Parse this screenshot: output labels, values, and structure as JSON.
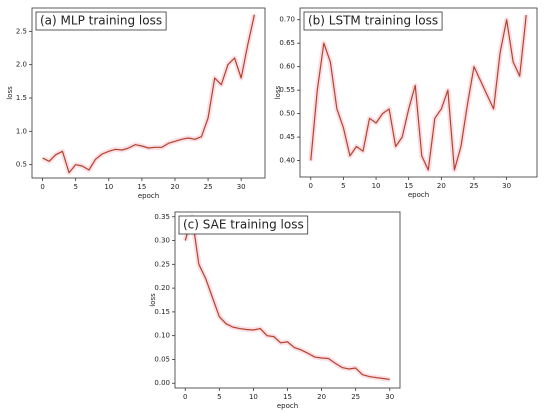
{
  "chart_data": [
    {
      "type": "line",
      "title": "(a) MLP training loss",
      "x_label": "epoch",
      "y_label": "loss",
      "color": "#b5442a",
      "x": [
        0,
        1,
        2,
        3,
        4,
        5,
        6,
        7,
        8,
        9,
        10,
        11,
        12,
        13,
        14,
        15,
        16,
        17,
        18,
        19,
        20,
        21,
        22,
        23,
        24,
        25,
        26,
        27,
        28,
        29,
        30,
        31,
        32
      ],
      "series": [
        {
          "name": "MLP",
          "color": "#b5442a",
          "values": [
            0.6,
            0.55,
            0.65,
            0.7,
            0.38,
            0.5,
            0.48,
            0.42,
            0.58,
            0.66,
            0.7,
            0.73,
            0.72,
            0.75,
            0.8,
            0.78,
            0.75,
            0.76,
            0.76,
            0.82,
            0.85,
            0.88,
            0.9,
            0.88,
            0.92,
            1.2,
            1.8,
            1.7,
            2.0,
            2.1,
            1.8,
            2.3,
            2.75
          ]
        }
      ],
      "xlim": [
        -1.6,
        33.6
      ],
      "xticks": [
        0,
        5,
        10,
        15,
        20,
        25,
        30
      ],
      "ylim": [
        0.3,
        2.85
      ],
      "yticks": [
        0.5,
        {
          "value": 1,
          "label": "1.0"
        },
        1.5,
        {
          "value": 2,
          "label": "2.0"
        },
        2.5
      ]
    },
    {
      "type": "line",
      "title": "(b) LSTM training loss",
      "x_label": "epoch",
      "y_label": "loss",
      "color": "#b5442a",
      "x": [
        0,
        1,
        2,
        3,
        4,
        5,
        6,
        7,
        8,
        9,
        10,
        11,
        12,
        13,
        14,
        15,
        16,
        17,
        18,
        19,
        20,
        21,
        22,
        23,
        24,
        25,
        26,
        27,
        28,
        29,
        30,
        31,
        32,
        33
      ],
      "series": [
        {
          "name": "LSTM",
          "color": "#b5442a",
          "values": [
            0.4,
            0.55,
            0.65,
            0.61,
            0.51,
            0.47,
            0.41,
            0.43,
            0.42,
            0.49,
            0.48,
            0.5,
            0.51,
            0.43,
            0.45,
            0.51,
            0.56,
            0.41,
            0.38,
            0.49,
            0.51,
            0.55,
            0.38,
            0.43,
            0.52,
            0.6,
            0.57,
            0.54,
            0.51,
            0.63,
            0.7,
            0.61,
            0.58,
            0.71
          ]
        }
      ],
      "xlim": [
        -1.65,
        34.65
      ],
      "xticks": [
        0,
        5,
        10,
        15,
        20,
        25,
        30
      ],
      "ylim": [
        0.365,
        0.725
      ],
      "yticks": [
        {
          "value": 0.4,
          "label": "0.40"
        },
        0.45,
        {
          "value": 0.5,
          "label": "0.50"
        },
        0.55,
        {
          "value": 0.6,
          "label": "0.60"
        },
        0.65,
        {
          "value": 0.7,
          "label": "0.70"
        }
      ]
    },
    {
      "type": "line",
      "title": "(c) SAE training loss",
      "x_label": "epoch",
      "y_label": "loss",
      "color": "#b5442a",
      "x": [
        0,
        1,
        2,
        3,
        4,
        5,
        6,
        7,
        8,
        9,
        10,
        11,
        12,
        13,
        14,
        15,
        16,
        17,
        18,
        19,
        20,
        21,
        22,
        23,
        24,
        25,
        26,
        27,
        28,
        29,
        30
      ],
      "series": [
        {
          "name": "SAE",
          "color": "#b5442a",
          "values": [
            0.3,
            0.35,
            0.25,
            0.22,
            0.18,
            0.14,
            0.125,
            0.118,
            0.115,
            0.113,
            0.112,
            0.115,
            0.1,
            0.098,
            0.085,
            0.087,
            0.075,
            0.07,
            0.063,
            0.055,
            0.053,
            0.052,
            0.042,
            0.033,
            0.03,
            0.032,
            0.018,
            0.014,
            0.012,
            0.01,
            0.008
          ]
        }
      ],
      "xlim": [
        -1.5,
        31.5
      ],
      "xticks": [
        0,
        5,
        10,
        15,
        20,
        25,
        30
      ],
      "ylim": [
        -0.01,
        0.36
      ],
      "yticks": [
        {
          "value": 0,
          "label": "0.00"
        },
        0.05,
        {
          "value": 0.1,
          "label": "0.10"
        },
        0.15,
        {
          "value": 0.2,
          "label": "0.20"
        },
        0.25,
        {
          "value": 0.3,
          "label": "0.30"
        },
        0.35
      ]
    }
  ]
}
